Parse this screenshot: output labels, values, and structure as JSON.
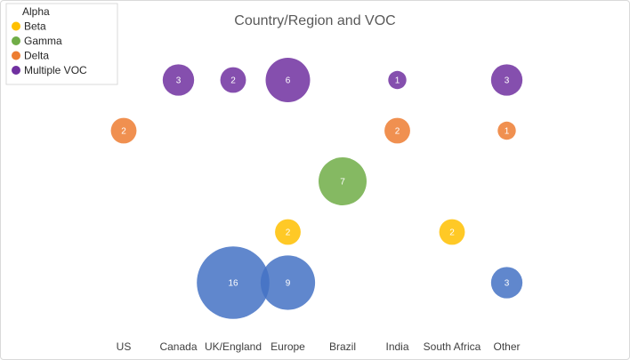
{
  "chart_data": {
    "type": "bubble",
    "title": "Country/Region and VOC",
    "categories": [
      "US",
      "Canada",
      "UK/England",
      "Europe",
      "Brazil",
      "India",
      "South Africa",
      "Other"
    ],
    "legend_position": "top-left",
    "series": [
      {
        "name": "Alpha",
        "color": "#4472c4",
        "points": [
          {
            "category": "UK/England",
            "value": 16
          },
          {
            "category": "Europe",
            "value": 9
          },
          {
            "category": "Other",
            "value": 3
          }
        ]
      },
      {
        "name": "Beta",
        "color": "#ffc000",
        "points": [
          {
            "category": "Europe",
            "value": 2
          },
          {
            "category": "South Africa",
            "value": 2
          }
        ]
      },
      {
        "name": "Gamma",
        "color": "#70ad47",
        "points": [
          {
            "category": "Brazil",
            "value": 7
          }
        ]
      },
      {
        "name": "Delta",
        "color": "#ed7d31",
        "points": [
          {
            "category": "US",
            "value": 2
          },
          {
            "category": "India",
            "value": 2
          },
          {
            "category": "Other",
            "value": 1
          }
        ]
      },
      {
        "name": "Multiple VOC",
        "color": "#7030a0",
        "points": [
          {
            "category": "Canada",
            "value": 3
          },
          {
            "category": "UK/England",
            "value": 2
          },
          {
            "category": "Europe",
            "value": 6
          },
          {
            "category": "India",
            "value": 1
          },
          {
            "category": "Other",
            "value": 3
          }
        ]
      }
    ],
    "grid": false
  }
}
